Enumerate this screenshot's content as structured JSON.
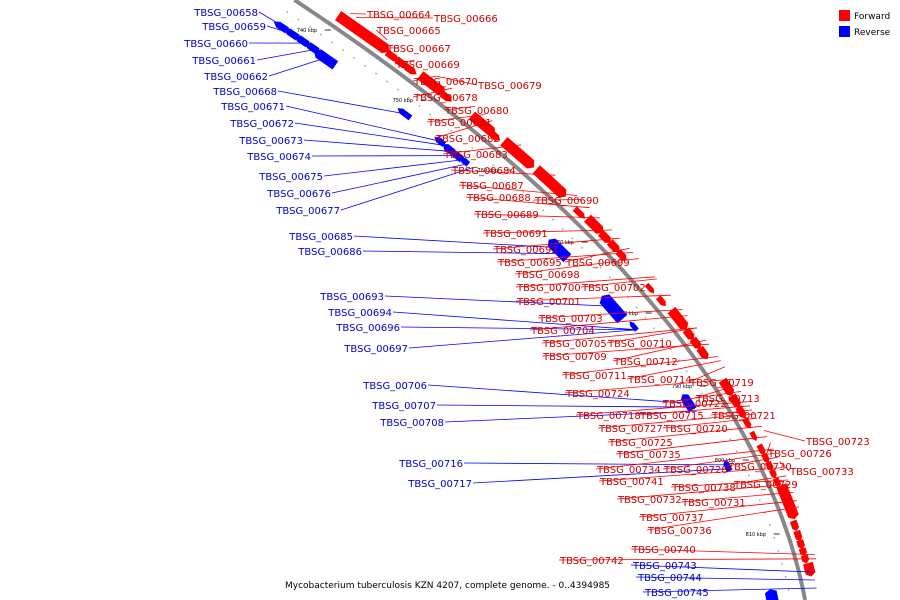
{
  "legend": {
    "items": [
      {
        "label": "Forward",
        "color": "#ff0000"
      },
      {
        "label": "Reverse",
        "color": "#0000ff"
      }
    ]
  },
  "caption": "Mycobacterium tuberculosis KZN 4207, complete genome. - 0..4394985",
  "colors": {
    "forward": "#ff0000",
    "reverse": "#0000ff",
    "backbone": "#888888"
  },
  "ticks": [
    "740 kbp",
    "750 kbp",
    "760 kbp",
    "770 kbp",
    "780 kbp",
    "790 kbp",
    "800 kbp",
    "810 kbp"
  ],
  "forward_genes": [
    "TBSG_00664",
    "TBSG_00665",
    "TBSG_00666",
    "TBSG_00667",
    "TBSG_00669",
    "TBSG_00670",
    "TBSG_00678",
    "TBSG_00679",
    "TBSG_00680",
    "TBSG_00681",
    "TBSG_00682",
    "TBSG_00683",
    "TBSG_00684",
    "TBSG_00687",
    "TBSG_00688",
    "TBSG_00689",
    "TBSG_00690",
    "TBSG_00691",
    "TBSG_00692",
    "TBSG_00695",
    "TBSG_00699",
    "TBSG_00698",
    "TBSG_00700",
    "TBSG_00702",
    "TBSG_00701",
    "TBSG_00703",
    "TBSG_00704",
    "TBSG_00705",
    "TBSG_00710",
    "TBSG_00709",
    "TBSG_00712",
    "TBSG_00711",
    "TBSG_00714",
    "TBSG_00719",
    "TBSG_00724",
    "TBSG_00713",
    "TBSG_00722",
    "TBSG_00718",
    "TBSG_00715",
    "TBSG_00721",
    "TBSG_00727",
    "TBSG_00720",
    "TBSG_00725",
    "TBSG_00723",
    "TBSG_00735",
    "TBSG_00726",
    "TBSG_00734",
    "TBSG_00728",
    "TBSG_00730",
    "TBSG_00733",
    "TBSG_00741",
    "TBSG_00729",
    "TBSG_00738",
    "TBSG_00732",
    "TBSG_00731",
    "TBSG_00737",
    "TBSG_00736",
    "TBSG_00740",
    "TBSG_00742"
  ],
  "reverse_genes": [
    "TBSG_00658",
    "TBSG_00659",
    "TBSG_00660",
    "TBSG_00661",
    "TBSG_00662",
    "TBSG_00668",
    "TBSG_00671",
    "TBSG_00672",
    "TBSG_00673",
    "TBSG_00674",
    "TBSG_00675",
    "TBSG_00676",
    "TBSG_00677",
    "TBSG_00685",
    "TBSG_00686",
    "TBSG_00693",
    "TBSG_00694",
    "TBSG_00696",
    "TBSG_00697",
    "TBSG_00706",
    "TBSG_00707",
    "TBSG_00708",
    "TBSG_00716",
    "TBSG_00717",
    "TBSG_00743",
    "TBSG_00744",
    "TBSG_00745"
  ]
}
